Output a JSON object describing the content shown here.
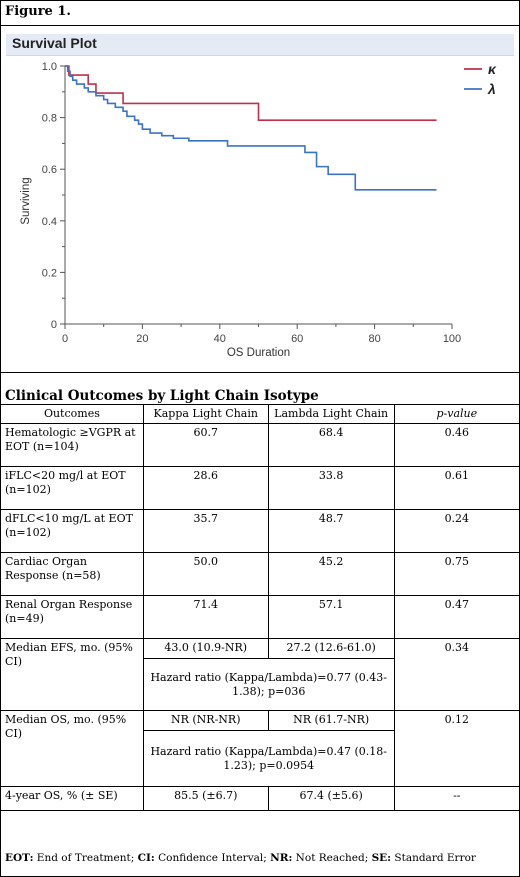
{
  "figure_label": "Figure 1.",
  "plot": {
    "title": "Survival Plot",
    "y_label": "Surviving",
    "x_label": "OS Duration",
    "y_ticks": [
      "1.0",
      "0.8",
      "0.6",
      "0.4",
      "0.2",
      "0"
    ],
    "x_ticks": [
      "0",
      "20",
      "40",
      "60",
      "80",
      "100"
    ],
    "legend": [
      {
        "symbol": "κ",
        "color": "#c0304a"
      },
      {
        "symbol": "λ",
        "color": "#3b73c9"
      }
    ]
  },
  "chart_data": {
    "type": "line",
    "xlabel": "OS Duration",
    "ylabel": "Surviving",
    "xlim": [
      0,
      100
    ],
    "ylim": [
      0,
      1.0
    ],
    "grid": false,
    "legend_position": "top-right",
    "series": [
      {
        "name": "κ",
        "color": "#c0304a",
        "steps": [
          [
            0,
            1.0
          ],
          [
            1,
            0.965
          ],
          [
            6,
            0.93
          ],
          [
            8,
            0.895
          ],
          [
            15,
            0.855
          ],
          [
            50,
            0.79
          ],
          [
            96,
            0.79
          ]
        ]
      },
      {
        "name": "λ",
        "color": "#3b73c9",
        "steps": [
          [
            0,
            1.0
          ],
          [
            0.7,
            0.98
          ],
          [
            1.3,
            0.96
          ],
          [
            2,
            0.945
          ],
          [
            3,
            0.93
          ],
          [
            5,
            0.915
          ],
          [
            6,
            0.9
          ],
          [
            8,
            0.885
          ],
          [
            10,
            0.87
          ],
          [
            11,
            0.855
          ],
          [
            13,
            0.84
          ],
          [
            15,
            0.825
          ],
          [
            16,
            0.805
          ],
          [
            18,
            0.79
          ],
          [
            19,
            0.775
          ],
          [
            20,
            0.755
          ],
          [
            22,
            0.74
          ],
          [
            25,
            0.73
          ],
          [
            28,
            0.72
          ],
          [
            32,
            0.71
          ],
          [
            42,
            0.69
          ],
          [
            62,
            0.665
          ],
          [
            65,
            0.61
          ],
          [
            68,
            0.58
          ],
          [
            75,
            0.52
          ],
          [
            96,
            0.52
          ]
        ]
      }
    ]
  },
  "table": {
    "title": "Clinical Outcomes by Light Chain Isotype",
    "headers": [
      "Outcomes",
      "Kappa Light Chain",
      "Lambda Light Chain",
      "p-value"
    ],
    "rows": [
      {
        "outcome": "Hematologic ≥VGPR at EOT (n=104)",
        "kappa": "60.7",
        "lambda": "68.4",
        "p": "0.46"
      },
      {
        "outcome": "iFLC<20 mg/l at EOT (n=102)",
        "kappa": "28.6",
        "lambda": "33.8",
        "p": "0.61"
      },
      {
        "outcome": "dFLC<10 mg/L at EOT (n=102)",
        "kappa": "35.7",
        "lambda": "48.7",
        "p": "0.24"
      },
      {
        "outcome": "Cardiac Organ Response (n=58)",
        "kappa": "50.0",
        "lambda": "45.2",
        "p": "0.75"
      },
      {
        "outcome": "Renal Organ Response (n=49)",
        "kappa": "71.4",
        "lambda": "57.1",
        "p": "0.47"
      }
    ],
    "efs": {
      "outcome": "Median EFS, mo. (95% CI)",
      "kappa": "43.0 (10.9-NR)",
      "lambda": "27.2 (12.6-61.0)",
      "p": "0.34",
      "hr": "Hazard ratio (Kappa/Lambda)=0.77 (0.43-1.38); p=036"
    },
    "os": {
      "outcome": "Median OS, mo. (95% CI)",
      "kappa": "NR (NR-NR)",
      "lambda": "NR (61.7-NR)",
      "p": "0.12",
      "hr": "Hazard ratio (Kappa/Lambda)=0.47 (0.18-1.23); p=0.0954"
    },
    "four_year": {
      "outcome": "4-year OS, % (± SE)",
      "kappa": "85.5 (±6.7)",
      "lambda": "67.4 (±5.6)",
      "p": "--"
    }
  },
  "footnote": [
    {
      "abbr": "EOT:",
      "text": " End of Treatment; "
    },
    {
      "abbr": "CI:",
      "text": " Confidence Interval; "
    },
    {
      "abbr": "NR:",
      "text": " Not Reached; "
    },
    {
      "abbr": "SE:",
      "text": " Standard Error"
    }
  ]
}
